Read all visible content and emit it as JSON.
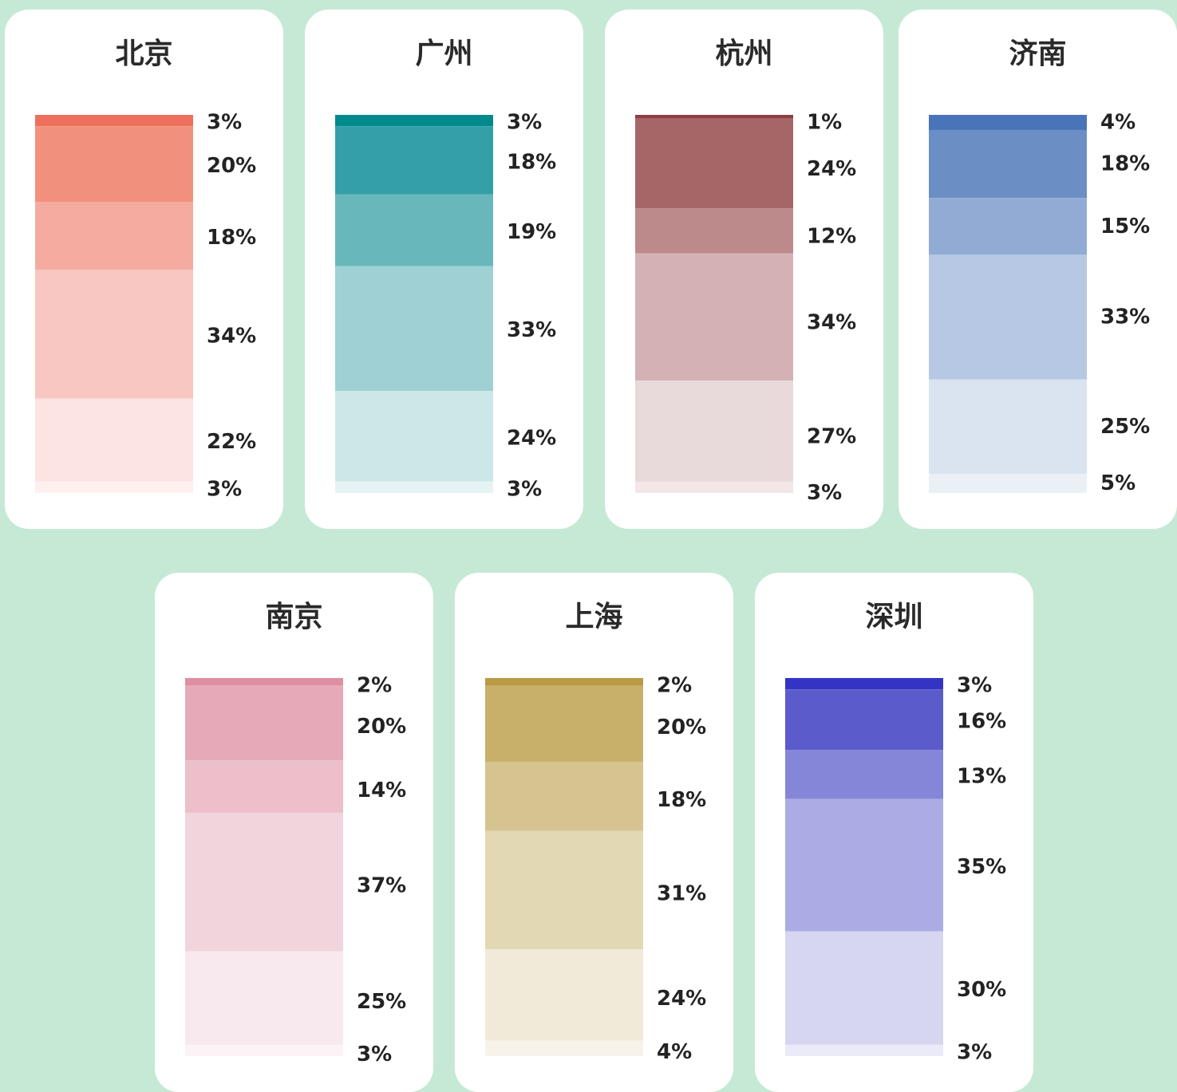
{
  "chart_data": [
    {
      "type": "stacked-bar",
      "title": "北京",
      "values": [
        3,
        20,
        18,
        34,
        22,
        3
      ],
      "labels": [
        "3%",
        "20%",
        "18%",
        "34%",
        "22%",
        "3%"
      ],
      "colors": [
        "#ef6f5e",
        "#f2907e",
        "#f5aba0",
        "#f8c7c1",
        "#fbe4e1",
        "#fdf0ee"
      ]
    },
    {
      "type": "stacked-bar",
      "title": "广州",
      "values": [
        3,
        18,
        19,
        33,
        24,
        3
      ],
      "labels": [
        "3%",
        "18%",
        "19%",
        "33%",
        "24%",
        "3%"
      ],
      "colors": [
        "#008a8b",
        "#349fa7",
        "#68b8bb",
        "#9ed0d4",
        "#cde7e8",
        "#e6f3f4"
      ]
    },
    {
      "type": "stacked-bar",
      "title": "杭州",
      "values": [
        1,
        24,
        12,
        34,
        27,
        3
      ],
      "labels": [
        "1%",
        "24%",
        "12%",
        "34%",
        "27%",
        "3%"
      ],
      "colors": [
        "#8f3f44",
        "#a66668",
        "#bd8a8b",
        "#d3b1b4",
        "#e8d9da",
        "#f2e6e7"
      ]
    },
    {
      "type": "stacked-bar",
      "title": "济南",
      "values": [
        4,
        18,
        15,
        33,
        25,
        5
      ],
      "labels": [
        "4%",
        "18%",
        "15%",
        "33%",
        "25%",
        "5%"
      ],
      "colors": [
        "#4a74b9",
        "#6b8fc5",
        "#91abd5",
        "#b6c8e3",
        "#dae3f0",
        "#ebf0f7"
      ]
    },
    {
      "type": "stacked-bar",
      "title": "南京",
      "values": [
        2,
        20,
        14,
        37,
        25,
        3
      ],
      "labels": [
        "2%",
        "20%",
        "14%",
        "37%",
        "25%",
        "3%"
      ],
      "colors": [
        "#df8fa1",
        "#e6a9b8",
        "#ecbfca",
        "#f2d4dd",
        "#f8e9ee",
        "#fbf3f5"
      ]
    },
    {
      "type": "stacked-bar",
      "title": "上海",
      "values": [
        2,
        20,
        18,
        31,
        24,
        4
      ],
      "labels": [
        "2%",
        "20%",
        "18%",
        "31%",
        "24%",
        "4%"
      ],
      "colors": [
        "#b99a45",
        "#c8b06b",
        "#d6c490",
        "#e3d8b4",
        "#f1ead9",
        "#f7f3ea"
      ]
    },
    {
      "type": "stacked-bar",
      "title": "深圳",
      "values": [
        3,
        16,
        13,
        35,
        30,
        3
      ],
      "labels": [
        "3%",
        "16%",
        "13%",
        "35%",
        "30%",
        "3%"
      ],
      "colors": [
        "#3434c4",
        "#5b5bcc",
        "#8686d9",
        "#acace4",
        "#d6d6f1",
        "#eaeaf8"
      ]
    }
  ]
}
